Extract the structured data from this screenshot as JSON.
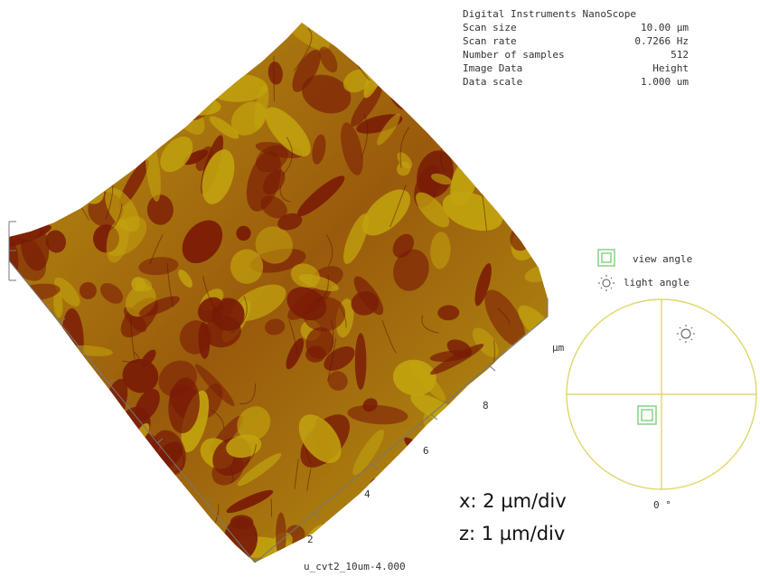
{
  "info_panel": {
    "instrument": "Digital Instruments NanoScope",
    "rows": [
      {
        "label": "Scan size",
        "value": "10.00 µm"
      },
      {
        "label": "Scan rate",
        "value": "0.7266 Hz"
      },
      {
        "label": "Number of samples",
        "value": "512"
      },
      {
        "label": "Image Data",
        "value": "Height"
      },
      {
        "label": "Data scale",
        "value": "1.000 um"
      }
    ]
  },
  "legend": {
    "view_angle_label": "view angle",
    "light_angle_label": "light angle",
    "view_icon": "double-square-icon",
    "light_icon": "sun-icon"
  },
  "orientation": {
    "angle_label": "0 °"
  },
  "axes": {
    "unit_label": "µm",
    "tick_labels": [
      "2",
      "4",
      "6",
      "8"
    ]
  },
  "scale_text": {
    "x": "x: 2 µm/div",
    "z": "z: 1 µm/div"
  },
  "filename": "u_cvt2_10um-4.000",
  "colors": {
    "surface_dark": "#7a1c06",
    "surface_light": "#c2a30e",
    "orientation_circle": "#e0d66a",
    "view_icon": "#7dcf7d"
  }
}
